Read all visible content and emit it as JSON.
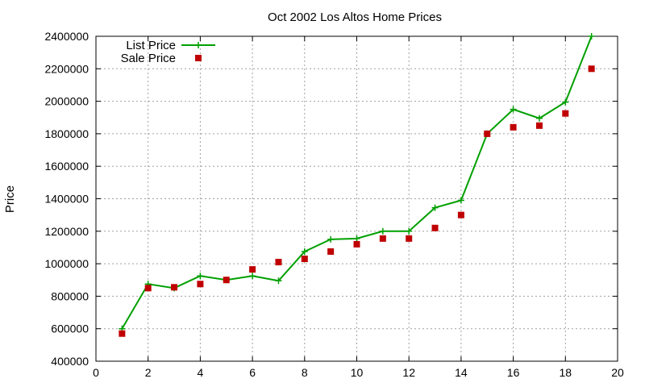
{
  "chart_data": {
    "type": "line",
    "title": "Oct 2002 Los Altos Home Prices",
    "xlabel": "",
    "ylabel": "Price",
    "xlim": [
      0,
      20
    ],
    "ylim": [
      400000,
      2400000
    ],
    "x_ticks": [
      0,
      2,
      4,
      6,
      8,
      10,
      12,
      14,
      16,
      18,
      20
    ],
    "y_ticks": [
      400000,
      600000,
      800000,
      1000000,
      1200000,
      1400000,
      1600000,
      1800000,
      2000000,
      2200000,
      2400000
    ],
    "grid": true,
    "legend_position": "top-left",
    "series": [
      {
        "name": "List Price",
        "style": "line-with-plus-markers",
        "color": "#00a000",
        "x": [
          1,
          2,
          3,
          4,
          5,
          6,
          7,
          8,
          9,
          10,
          11,
          12,
          13,
          14,
          15,
          16,
          17,
          18,
          19
        ],
        "values": [
          600000,
          875000,
          850000,
          925000,
          900000,
          925000,
          895000,
          1075000,
          1150000,
          1155000,
          1200000,
          1200000,
          1345000,
          1390000,
          1800000,
          1950000,
          1895000,
          1995000,
          2400000
        ]
      },
      {
        "name": "Sale Price",
        "style": "square-markers",
        "color": "#c00000",
        "x": [
          1,
          2,
          3,
          4,
          5,
          6,
          7,
          8,
          9,
          10,
          11,
          12,
          13,
          14,
          15,
          16,
          17,
          18,
          19
        ],
        "values": [
          570000,
          850000,
          855000,
          875000,
          900000,
          965000,
          1010000,
          1030000,
          1075000,
          1120000,
          1155000,
          1155000,
          1220000,
          1300000,
          1800000,
          1840000,
          1850000,
          1925000,
          2200000
        ]
      }
    ]
  }
}
